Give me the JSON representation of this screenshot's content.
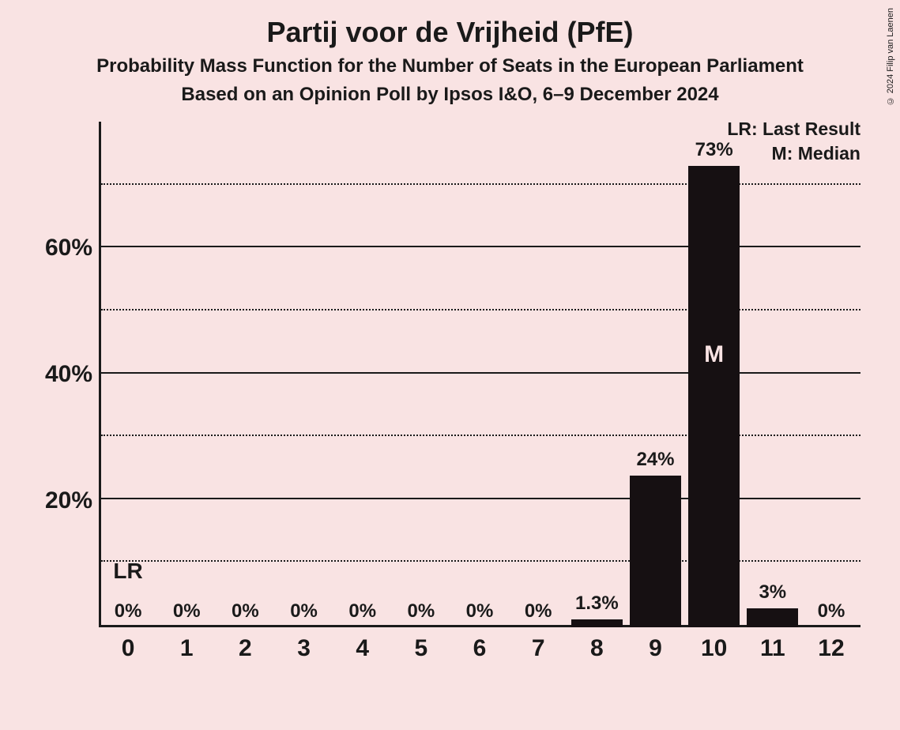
{
  "title": "Partij voor de Vrijheid (PfE)",
  "title_fontsize": 36,
  "subtitle1": "Probability Mass Function for the Number of Seats in the European Parliament",
  "subtitle2": "Based on an Opinion Poll by Ipsos I&O, 6–9 December 2024",
  "subtitle_fontsize": 24,
  "copyright": "© 2024 Filip van Laenen",
  "background_color": "#f9e3e3",
  "text_color": "#1a1a1a",
  "bar_color": "#161012",
  "chart": {
    "type": "bar",
    "categories": [
      "0",
      "1",
      "2",
      "3",
      "4",
      "5",
      "6",
      "7",
      "8",
      "9",
      "10",
      "11",
      "12"
    ],
    "values": [
      0,
      0,
      0,
      0,
      0,
      0,
      0,
      0,
      1.3,
      24,
      73,
      3,
      0
    ],
    "value_labels": [
      "0%",
      "0%",
      "0%",
      "0%",
      "0%",
      "0%",
      "0%",
      "0%",
      "1.3%",
      "24%",
      "73%",
      "3%",
      "0%"
    ],
    "median_index": 10,
    "median_label": "M",
    "last_result_index": 0,
    "last_result_label": "LR",
    "y_max": 80,
    "y_major_ticks": [
      20,
      40,
      60
    ],
    "y_major_labels": [
      "20%",
      "40%",
      "60%"
    ],
    "y_minor_ticks": [
      10,
      30,
      50,
      70
    ],
    "value_label_fontsize": 24,
    "x_tick_fontsize": 30,
    "y_tick_fontsize": 30,
    "median_label_fontsize": 30,
    "lr_label_fontsize": 28
  },
  "legend": {
    "lr": "LR: Last Result",
    "m": "M: Median",
    "fontsize": 23
  }
}
